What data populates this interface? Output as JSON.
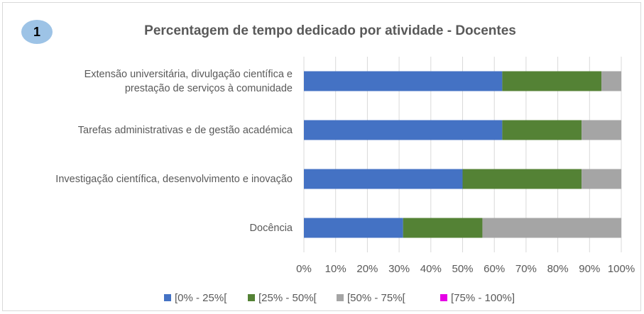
{
  "badge": "1",
  "chart_data": {
    "type": "stacked_barh",
    "title": "Percentagem de tempo dedicado por atividade - Docentes",
    "categories": [
      "Extensão universitária, divulgação científica e\nprestação de serviços à comunidade",
      "Tarefas administrativas e de gestão académica",
      "Investigação científica, desenvolvimento e inovação",
      "Docência"
    ],
    "series": [
      {
        "name": "[0% - 25%[",
        "color": "#4472c4",
        "values": [
          62.5,
          62.5,
          50,
          31.25
        ]
      },
      {
        "name": "[25% - 50%[",
        "color": "#548235",
        "values": [
          31.25,
          25,
          37.5,
          25
        ]
      },
      {
        "name": "[50% - 75%[",
        "color": "#a5a5a5",
        "values": [
          6.25,
          12.5,
          12.5,
          43.75
        ]
      },
      {
        "name": "[75% - 100%]",
        "color": "#e600e6",
        "values": [
          0,
          0,
          0,
          0
        ]
      }
    ],
    "xlim": [
      0,
      100
    ],
    "xticks": [
      {
        "value": 0,
        "label": "0%"
      },
      {
        "value": 10,
        "label": "10%"
      },
      {
        "value": 20,
        "label": "20%"
      },
      {
        "value": 30,
        "label": "30%"
      },
      {
        "value": 40,
        "label": "40%"
      },
      {
        "value": 50,
        "label": "50%"
      },
      {
        "value": 60,
        "label": "60%"
      },
      {
        "value": 70,
        "label": "70%"
      },
      {
        "value": 80,
        "label": "80%"
      },
      {
        "value": 90,
        "label": "90%"
      },
      {
        "value": 100,
        "label": "100%"
      }
    ],
    "grid": true,
    "legend": "bottom"
  }
}
